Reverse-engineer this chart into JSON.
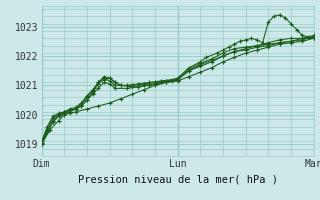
{
  "title": "Pression niveau de la mer( hPa )",
  "bg_color": "#cce8e8",
  "plot_bg_color": "#cce8e8",
  "grid_color": "#99cccc",
  "line_color": "#1a5c1a",
  "x_ticks_labels": [
    "Dim",
    "Lun",
    "Mar"
  ],
  "x_ticks_pos": [
    0,
    48,
    96
  ],
  "yticks": [
    1019,
    1020,
    1021,
    1022,
    1023
  ],
  "ylim": [
    1018.6,
    1023.7
  ],
  "xlim": [
    0,
    96
  ],
  "series": [
    [
      0,
      1019.0,
      3,
      1019.5,
      6,
      1019.8,
      8,
      1020.0,
      10,
      1020.05,
      12,
      1020.1,
      16,
      1020.2,
      20,
      1020.3,
      24,
      1020.4,
      28,
      1020.55,
      32,
      1020.7,
      36,
      1020.85,
      40,
      1021.0,
      44,
      1021.1,
      48,
      1021.15,
      52,
      1021.3,
      56,
      1021.45,
      60,
      1021.6,
      64,
      1021.8,
      68,
      1021.95,
      72,
      1022.1,
      76,
      1022.2,
      80,
      1022.3,
      84,
      1022.4,
      88,
      1022.45,
      92,
      1022.5,
      96,
      1022.6
    ],
    [
      0,
      1019.1,
      2,
      1019.6,
      4,
      1019.95,
      6,
      1020.05,
      8,
      1020.1,
      10,
      1020.15,
      12,
      1020.2,
      14,
      1020.3,
      16,
      1020.5,
      18,
      1020.75,
      20,
      1021.05,
      22,
      1021.2,
      24,
      1021.25,
      26,
      1021.1,
      28,
      1021.0,
      32,
      1020.95,
      36,
      1021.0,
      40,
      1021.05,
      44,
      1021.1,
      48,
      1021.2,
      52,
      1021.5,
      56,
      1021.7,
      60,
      1021.85,
      64,
      1022.0,
      68,
      1022.15,
      72,
      1022.2,
      76,
      1022.3,
      80,
      1022.35,
      84,
      1022.45,
      88,
      1022.5,
      92,
      1022.55,
      96,
      1022.65
    ],
    [
      0,
      1019.05,
      2,
      1019.5,
      4,
      1019.9,
      6,
      1020.0,
      8,
      1020.05,
      10,
      1020.15,
      12,
      1020.2,
      14,
      1020.35,
      16,
      1020.6,
      18,
      1020.8,
      20,
      1021.1,
      22,
      1021.3,
      24,
      1021.25,
      26,
      1021.1,
      28,
      1021.0,
      32,
      1021.0,
      36,
      1021.05,
      40,
      1021.1,
      44,
      1021.15,
      48,
      1021.2,
      52,
      1021.55,
      56,
      1021.75,
      60,
      1021.9,
      64,
      1022.1,
      68,
      1022.25,
      72,
      1022.3,
      76,
      1022.35,
      80,
      1022.4,
      84,
      1022.45,
      88,
      1022.5,
      92,
      1022.6,
      96,
      1022.7
    ],
    [
      0,
      1019.05,
      2,
      1019.45,
      4,
      1019.8,
      6,
      1020.0,
      8,
      1020.1,
      10,
      1020.2,
      12,
      1020.25,
      14,
      1020.4,
      16,
      1020.65,
      18,
      1020.85,
      20,
      1021.1,
      22,
      1021.25,
      24,
      1021.15,
      26,
      1021.0,
      30,
      1021.0,
      34,
      1021.05,
      38,
      1021.1,
      42,
      1021.15,
      46,
      1021.2,
      48,
      1021.25,
      52,
      1021.6,
      56,
      1021.8,
      58,
      1021.95,
      62,
      1022.1,
      64,
      1022.2,
      66,
      1022.3,
      68,
      1022.4,
      70,
      1022.5,
      72,
      1022.55,
      74,
      1022.6,
      76,
      1022.55,
      78,
      1022.45,
      80,
      1023.15,
      82,
      1023.35,
      84,
      1023.4,
      86,
      1023.3,
      88,
      1023.1,
      90,
      1022.9,
      92,
      1022.7,
      94,
      1022.65,
      96,
      1022.65
    ],
    [
      0,
      1019.0,
      2,
      1019.4,
      4,
      1019.75,
      6,
      1019.95,
      8,
      1020.05,
      10,
      1020.1,
      12,
      1020.2,
      14,
      1020.3,
      16,
      1020.5,
      18,
      1020.7,
      20,
      1020.9,
      22,
      1021.1,
      24,
      1021.05,
      26,
      1020.9,
      30,
      1020.9,
      34,
      1020.95,
      38,
      1021.0,
      42,
      1021.1,
      46,
      1021.15,
      48,
      1021.2,
      52,
      1021.5,
      56,
      1021.65,
      60,
      1021.8,
      64,
      1022.0,
      68,
      1022.15,
      72,
      1022.25,
      76,
      1022.35,
      80,
      1022.45,
      84,
      1022.55,
      88,
      1022.6,
      92,
      1022.6,
      96,
      1022.6
    ]
  ]
}
